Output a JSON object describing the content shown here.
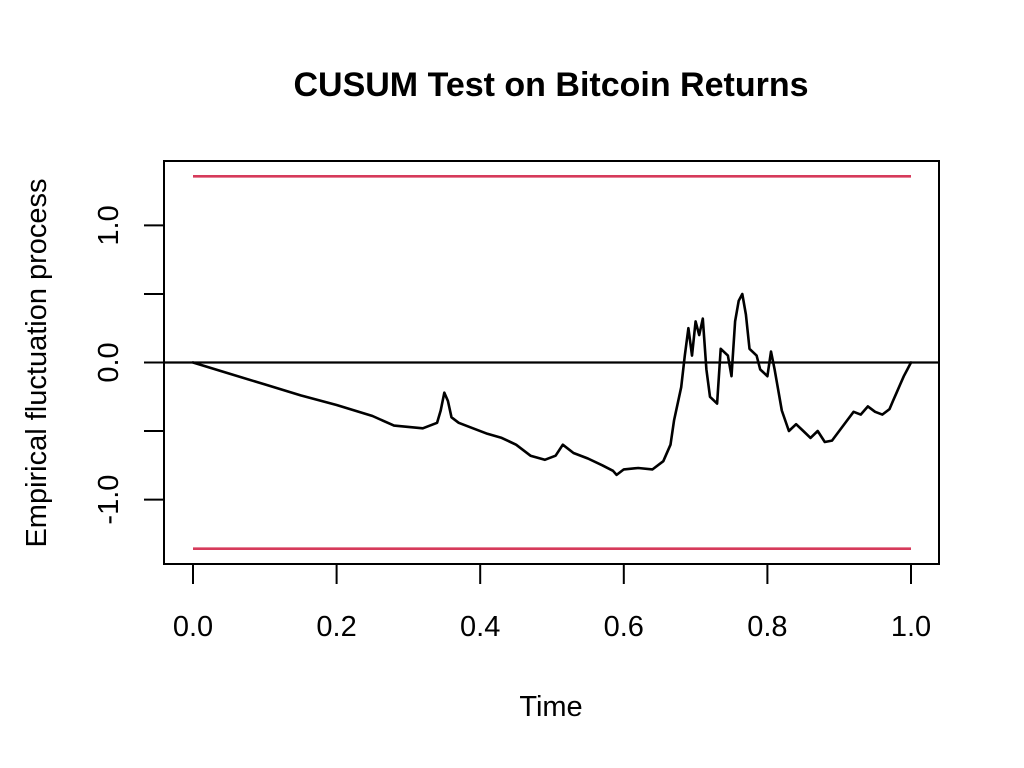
{
  "chart_data": {
    "type": "line",
    "title": "CUSUM Test on Bitcoin Returns",
    "xlabel": "Time",
    "ylabel": "Empirical fluctuation process",
    "xlim": [
      0.0,
      1.0
    ],
    "ylim": [
      -1.47,
      1.47
    ],
    "x_ticks": [
      {
        "value": 0.0,
        "label": "0.0"
      },
      {
        "value": 0.2,
        "label": "0.2"
      },
      {
        "value": 0.4,
        "label": "0.4"
      },
      {
        "value": 0.6,
        "label": "0.6"
      },
      {
        "value": 0.8,
        "label": "0.8"
      },
      {
        "value": 1.0,
        "label": "1.0"
      }
    ],
    "y_ticks": [
      {
        "value": -1.0,
        "label": "-1.0"
      },
      {
        "value": -0.5,
        "label": ""
      },
      {
        "value": 0.0,
        "label": "0.0"
      },
      {
        "value": 0.5,
        "label": ""
      },
      {
        "value": 1.0,
        "label": "1.0"
      }
    ],
    "grid": false,
    "reference_lines": [
      {
        "y": 1.358,
        "color": "#D63B5B"
      },
      {
        "y": -1.358,
        "color": "#D63B5B"
      },
      {
        "y": 0.0,
        "color": "#000000"
      }
    ],
    "series": [
      {
        "color": "#000000",
        "points": [
          [
            0.0,
            0.0
          ],
          [
            0.05,
            -0.08
          ],
          [
            0.1,
            -0.16
          ],
          [
            0.15,
            -0.24
          ],
          [
            0.2,
            -0.31
          ],
          [
            0.25,
            -0.39
          ],
          [
            0.28,
            -0.46
          ],
          [
            0.3,
            -0.47
          ],
          [
            0.32,
            -0.48
          ],
          [
            0.34,
            -0.44
          ],
          [
            0.345,
            -0.35
          ],
          [
            0.35,
            -0.22
          ],
          [
            0.355,
            -0.28
          ],
          [
            0.36,
            -0.4
          ],
          [
            0.37,
            -0.44
          ],
          [
            0.39,
            -0.48
          ],
          [
            0.41,
            -0.52
          ],
          [
            0.43,
            -0.55
          ],
          [
            0.45,
            -0.6
          ],
          [
            0.47,
            -0.68
          ],
          [
            0.49,
            -0.71
          ],
          [
            0.505,
            -0.68
          ],
          [
            0.515,
            -0.6
          ],
          [
            0.53,
            -0.66
          ],
          [
            0.55,
            -0.7
          ],
          [
            0.57,
            -0.75
          ],
          [
            0.585,
            -0.79
          ],
          [
            0.59,
            -0.82
          ],
          [
            0.6,
            -0.78
          ],
          [
            0.62,
            -0.77
          ],
          [
            0.64,
            -0.78
          ],
          [
            0.655,
            -0.72
          ],
          [
            0.665,
            -0.6
          ],
          [
            0.67,
            -0.42
          ],
          [
            0.68,
            -0.18
          ],
          [
            0.685,
            0.05
          ],
          [
            0.69,
            0.25
          ],
          [
            0.695,
            0.05
          ],
          [
            0.7,
            0.3
          ],
          [
            0.705,
            0.2
          ],
          [
            0.71,
            0.32
          ],
          [
            0.715,
            -0.05
          ],
          [
            0.72,
            -0.25
          ],
          [
            0.73,
            -0.3
          ],
          [
            0.735,
            0.1
          ],
          [
            0.745,
            0.05
          ],
          [
            0.75,
            -0.1
          ],
          [
            0.755,
            0.3
          ],
          [
            0.76,
            0.45
          ],
          [
            0.765,
            0.5
          ],
          [
            0.77,
            0.35
          ],
          [
            0.775,
            0.1
          ],
          [
            0.785,
            0.05
          ],
          [
            0.79,
            -0.05
          ],
          [
            0.8,
            -0.1
          ],
          [
            0.805,
            0.08
          ],
          [
            0.81,
            -0.05
          ],
          [
            0.815,
            -0.2
          ],
          [
            0.82,
            -0.35
          ],
          [
            0.83,
            -0.5
          ],
          [
            0.84,
            -0.45
          ],
          [
            0.85,
            -0.5
          ],
          [
            0.86,
            -0.55
          ],
          [
            0.87,
            -0.5
          ],
          [
            0.88,
            -0.58
          ],
          [
            0.89,
            -0.57
          ],
          [
            0.9,
            -0.5
          ],
          [
            0.91,
            -0.43
          ],
          [
            0.92,
            -0.36
          ],
          [
            0.93,
            -0.38
          ],
          [
            0.94,
            -0.32
          ],
          [
            0.95,
            -0.36
          ],
          [
            0.96,
            -0.38
          ],
          [
            0.97,
            -0.34
          ],
          [
            0.975,
            -0.28
          ],
          [
            0.98,
            -0.22
          ],
          [
            0.985,
            -0.16
          ],
          [
            0.99,
            -0.1
          ],
          [
            0.995,
            -0.05
          ],
          [
            1.0,
            0.0
          ]
        ]
      }
    ]
  }
}
